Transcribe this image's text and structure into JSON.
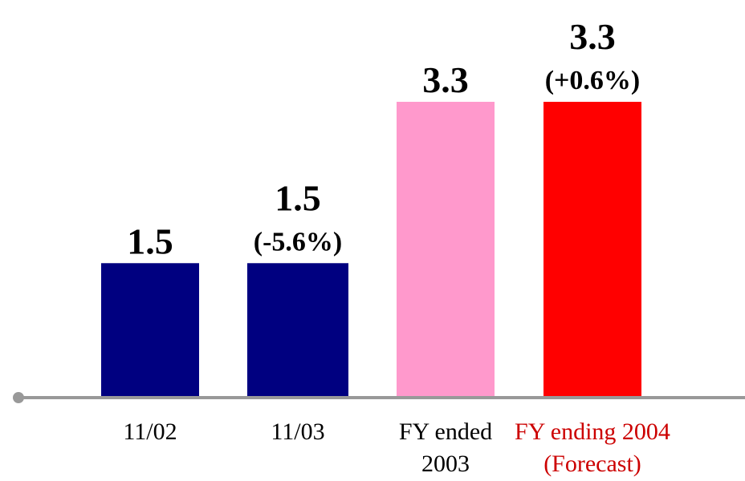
{
  "chart_data": {
    "type": "bar",
    "title": "",
    "xlabel": "",
    "ylabel": "",
    "ylim": [
      0,
      3.3
    ],
    "grid": false,
    "categories": [
      {
        "lines": [
          "11/02"
        ],
        "color": "#000000"
      },
      {
        "lines": [
          "11/03"
        ],
        "color": "#000000"
      },
      {
        "lines": [
          "FY ended",
          "2003"
        ],
        "color": "#000000"
      },
      {
        "lines": [
          "FY ending 2004",
          "(Forecast)"
        ],
        "color": "#cc0000"
      }
    ],
    "values": [
      1.5,
      1.5,
      3.3,
      3.3
    ],
    "value_labels": [
      "1.5",
      "1.5",
      "3.3",
      "3.3"
    ],
    "change_labels": [
      "",
      "(-5.6%)",
      "",
      "(+0.6%)"
    ],
    "bar_colors": [
      "#000080",
      "#000080",
      "#ff99cc",
      "#ff0000"
    ],
    "axis_color": "#999999"
  }
}
